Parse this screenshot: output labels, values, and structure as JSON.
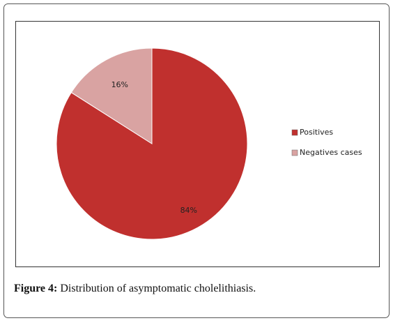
{
  "chart_data": {
    "type": "pie",
    "categories": [
      "Positives",
      "Negatives cases"
    ],
    "values": [
      84,
      16
    ],
    "value_labels": [
      "84%",
      "16%"
    ],
    "colors": [
      "#c0302e",
      "#d9a3a2"
    ],
    "legend": "right"
  },
  "caption": {
    "label": "Figure 4:",
    "text": "Distribution of asymptomatic cholelithiasis."
  }
}
